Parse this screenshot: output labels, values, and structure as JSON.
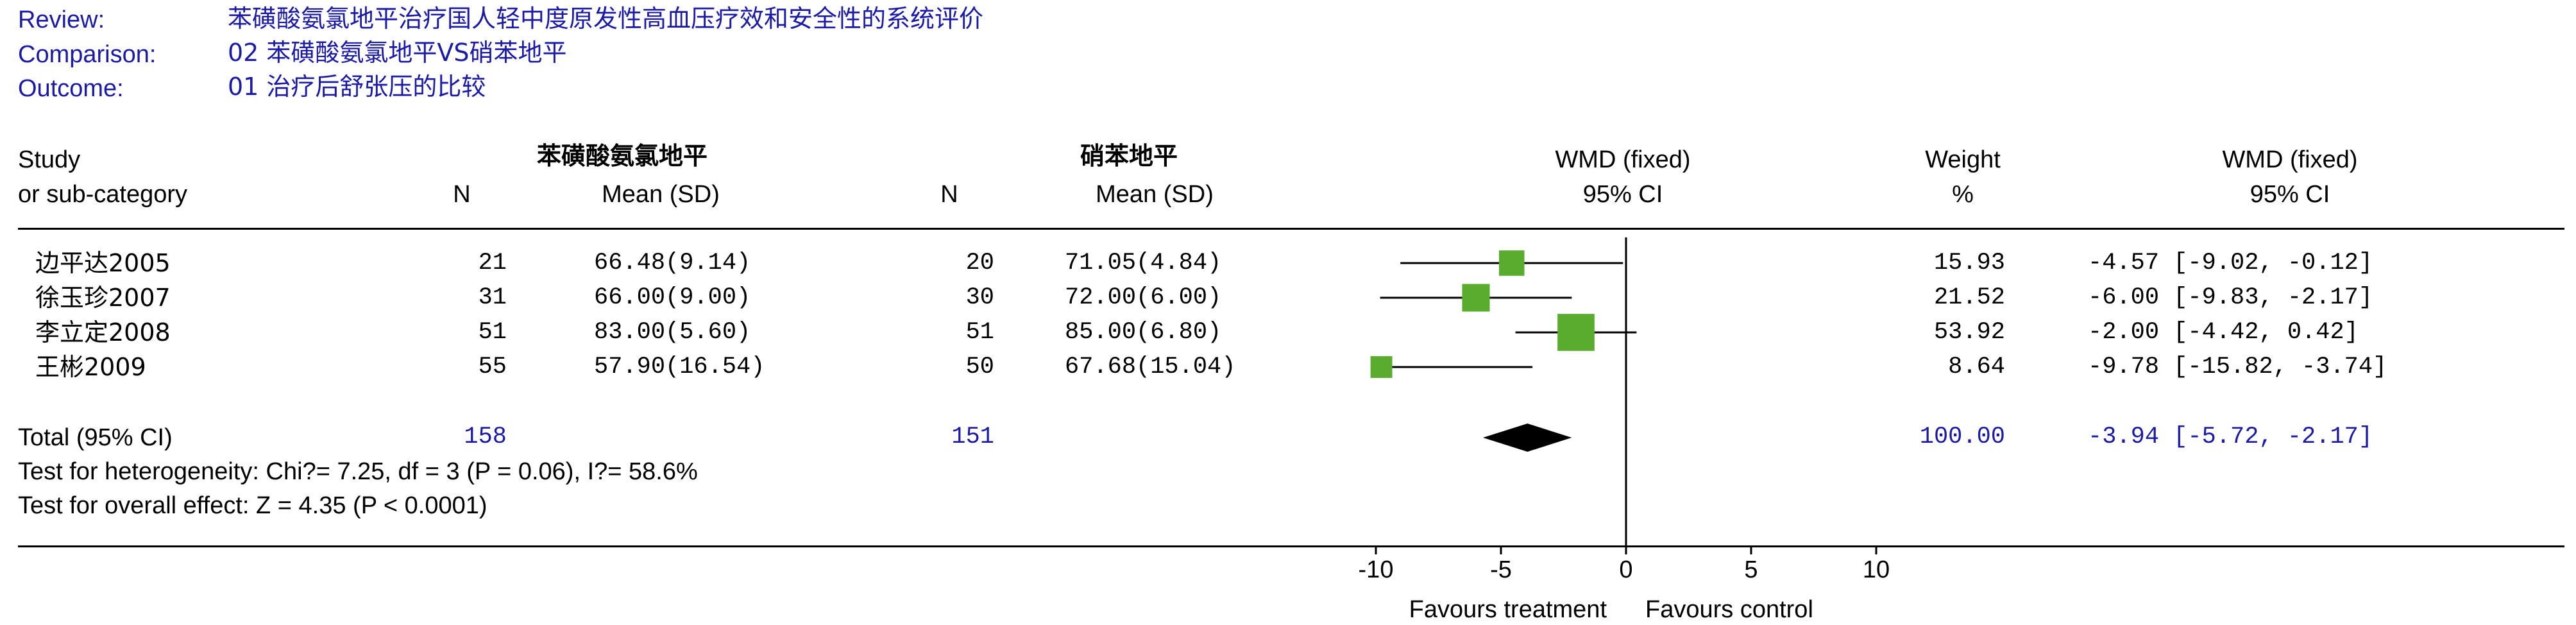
{
  "header": {
    "review_label": "Review:",
    "review_value": "苯磺酸氨氯地平治疗国人轻中度原发性高血压疗效和安全性的系统评价",
    "comparison_label": "Comparison:",
    "comparison_value": "02 苯磺酸氨氯地平VS硝苯地平",
    "outcome_label": "Outcome:",
    "outcome_value": "01 治疗后舒张压的比较"
  },
  "columns": {
    "study_line1": "Study",
    "study_line2": "or sub-category",
    "treatment_group": "苯磺酸氨氯地平",
    "control_group": "硝苯地平",
    "n_label": "N",
    "mean_sd_label": "Mean (SD)",
    "wmd_label": "WMD (fixed)",
    "ci_label": "95% CI",
    "weight_label": "Weight",
    "percent_label": "%"
  },
  "chart_data": {
    "type": "forest",
    "effect_measure": "WMD (fixed)",
    "xlim": [
      -10,
      10
    ],
    "ticks": [
      -10,
      -5,
      0,
      5,
      10
    ],
    "tick_labels": [
      "-10",
      "-5",
      "0",
      "5",
      "10"
    ],
    "xlabel_left": "Favours treatment",
    "xlabel_right": "Favours control",
    "studies": [
      {
        "name": "边平达2005",
        "n1": "21",
        "ms1": "66.48(9.14)",
        "n2": "20",
        "ms2": "71.05(4.84)",
        "weight_text": "15.93",
        "weight": 15.93,
        "ci_text": "-4.57 [-9.02, -0.12]",
        "est": -4.57,
        "lo": -9.02,
        "hi": -0.12
      },
      {
        "name": "徐玉珍2007",
        "n1": "31",
        "ms1": "66.00(9.00)",
        "n2": "30",
        "ms2": "72.00(6.00)",
        "weight_text": "21.52",
        "weight": 21.52,
        "ci_text": "-6.00 [-9.83, -2.17]",
        "est": -6.0,
        "lo": -9.83,
        "hi": -2.17
      },
      {
        "name": "李立定2008",
        "n1": "51",
        "ms1": "83.00(5.60)",
        "n2": "51",
        "ms2": "85.00(6.80)",
        "weight_text": "53.92",
        "weight": 53.92,
        "ci_text": "-2.00 [-4.42, 0.42]",
        "est": -2.0,
        "lo": -4.42,
        "hi": 0.42
      },
      {
        "name": "王彬2009",
        "n1": "55",
        "ms1": "57.90(16.54)",
        "n2": "50",
        "ms2": "67.68(15.04)",
        "weight_text": "8.64",
        "weight": 8.64,
        "ci_text": "-9.78 [-15.82, -3.74]",
        "est": -9.78,
        "lo": -15.82,
        "hi": -3.74
      }
    ],
    "total": {
      "label": "Total (95% CI)",
      "n1": "158",
      "n2": "151",
      "weight_text": "100.00",
      "ci_text": "-3.94 [-5.72, -2.17]",
      "est": -3.94,
      "lo": -5.72,
      "hi": -2.17
    },
    "heterogeneity": "Test for heterogeneity: Chi?= 7.25, df = 3 (P = 0.06), I?= 58.6%",
    "overall_effect": "Test for overall effect: Z = 4.35 (P < 0.0001)",
    "colors": {
      "square": "#5aac2e",
      "line": "#000000",
      "diamond": "#000000",
      "text_blue": "#1a1aa6"
    }
  }
}
